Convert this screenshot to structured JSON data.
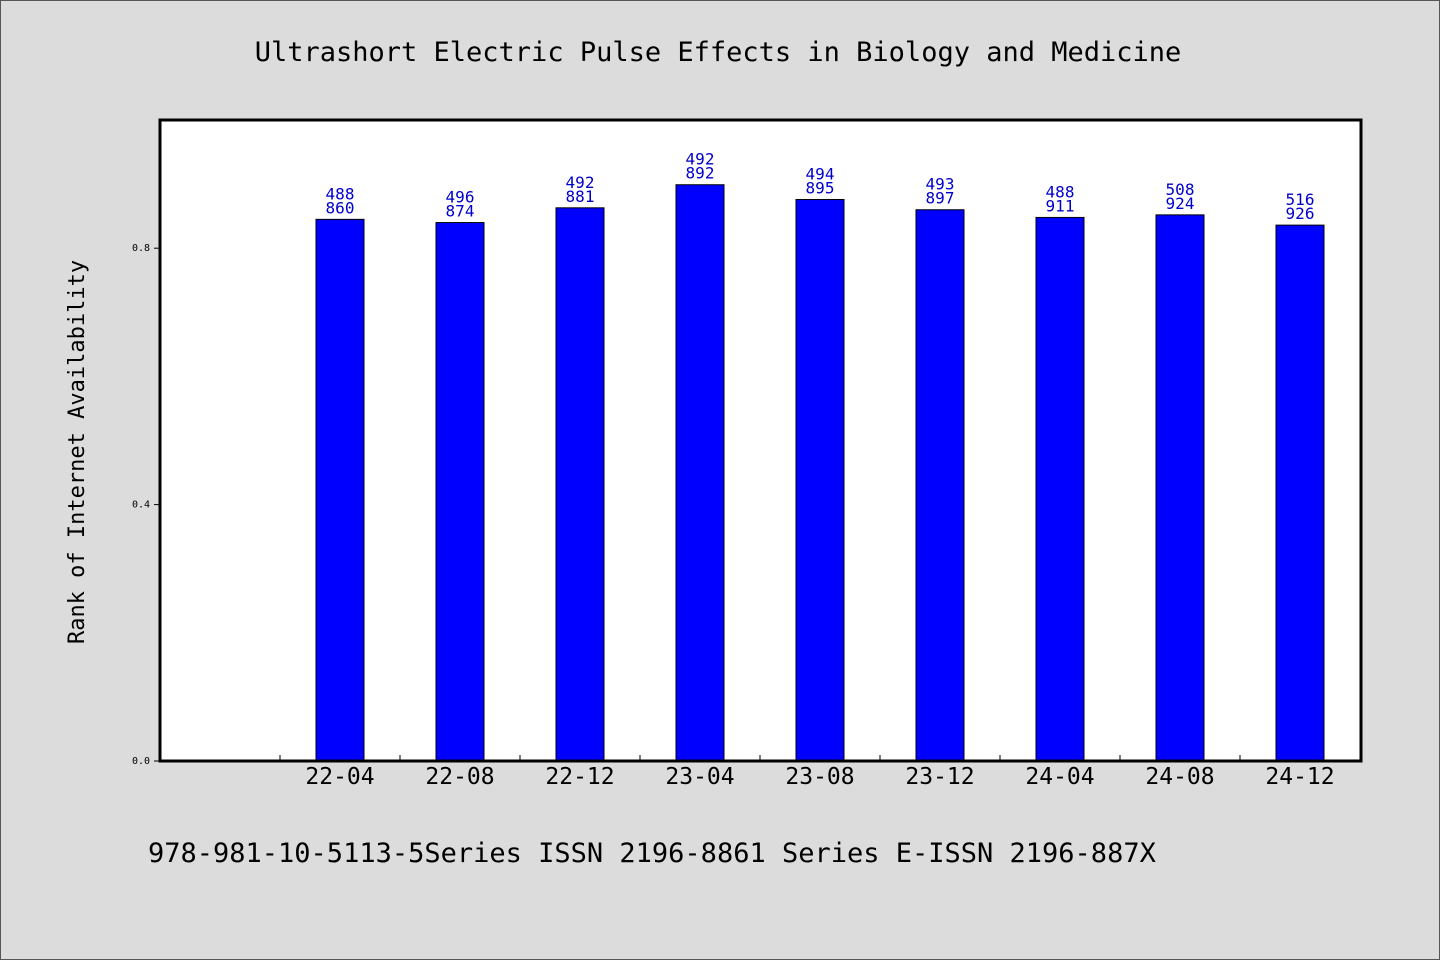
{
  "chart_data": {
    "type": "bar",
    "title": "Ultrashort Electric Pulse Effects in Biology and Medicine",
    "footer": "978-981-10-5113-5Series ISSN 2196-8861 Series E-ISSN 2196-887X",
    "xlabel": "",
    "ylabel": "Rank of Internet Availability",
    "ylim": [
      0.0,
      1.0
    ],
    "yticks": [
      "0.0",
      "0.4",
      "0.8"
    ],
    "ytick_values": [
      0.0,
      0.4,
      0.8
    ],
    "categories": [
      "22-04",
      "22-08",
      "22-12",
      "23-04",
      "23-08",
      "23-12",
      "24-04",
      "24-08",
      "24-12"
    ],
    "values": [
      0.845,
      0.84,
      0.863,
      0.899,
      0.876,
      0.86,
      0.848,
      0.852,
      0.836
    ],
    "labels_top": [
      "488",
      "496",
      "492",
      "492",
      "494",
      "493",
      "488",
      "508",
      "516"
    ],
    "labels_bottom": [
      "860",
      "874",
      "881",
      "892",
      "895",
      "897",
      "911",
      "924",
      "926"
    ],
    "bar_color": "#0000ff",
    "label_color": "#0000cc",
    "grid": false,
    "legend": "none"
  }
}
